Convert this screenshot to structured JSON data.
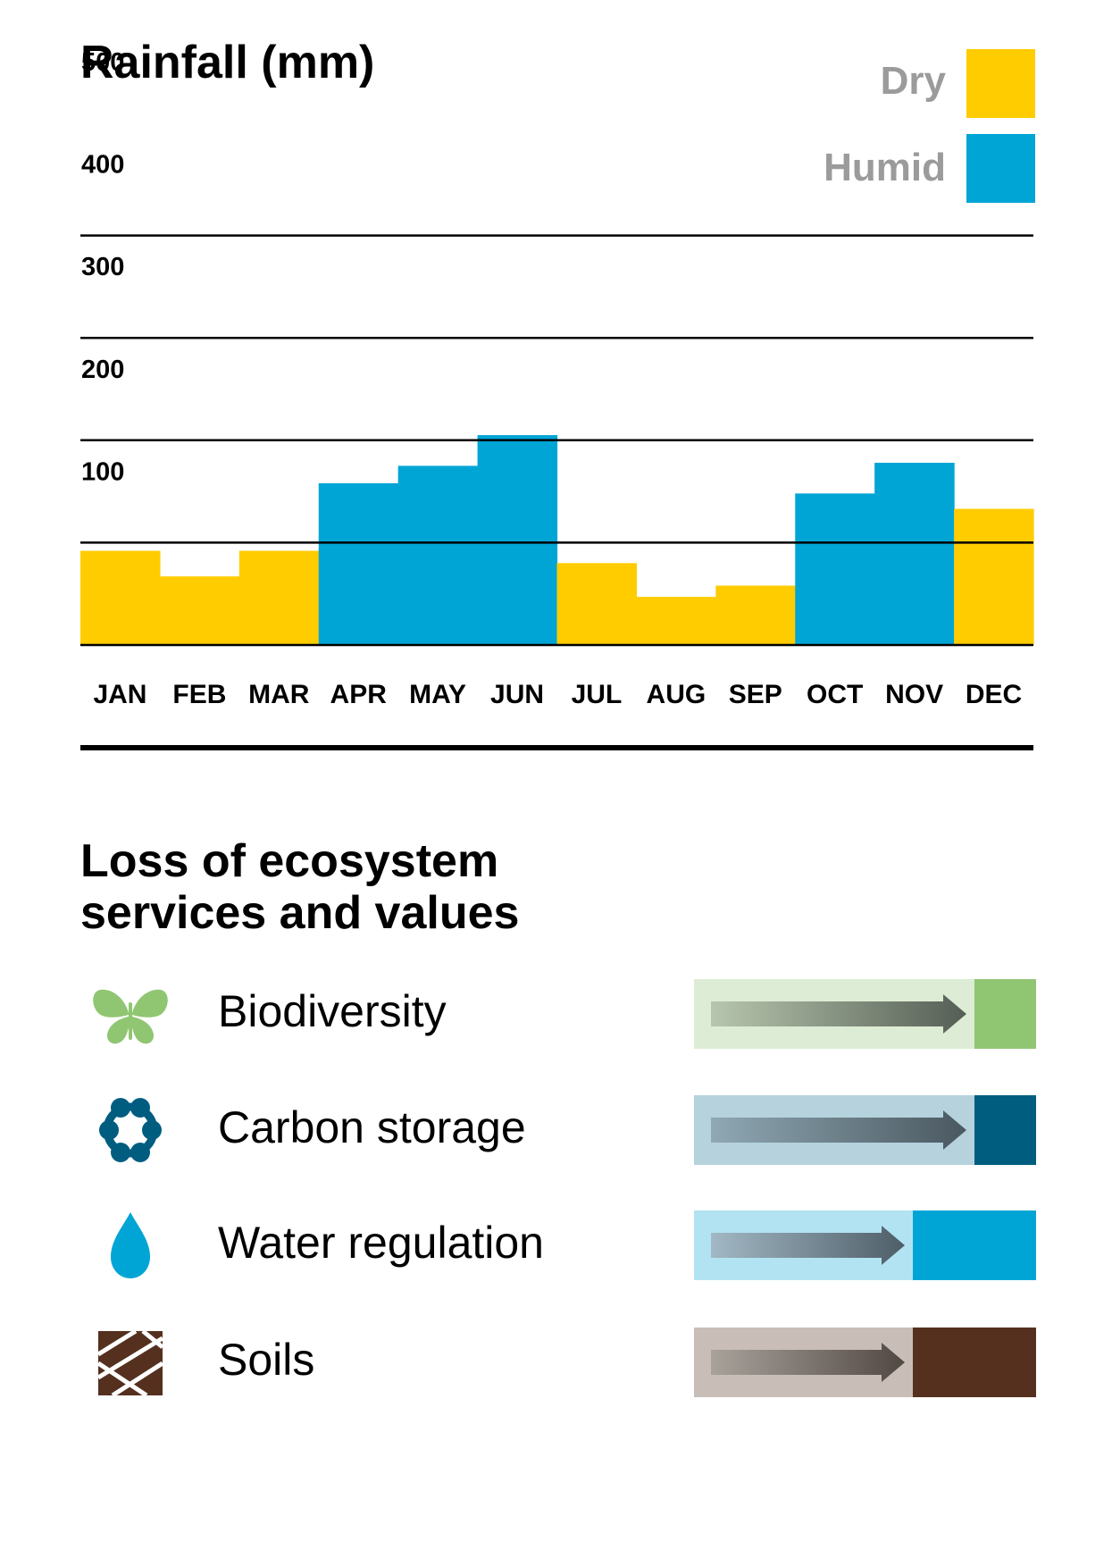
{
  "chart_data": {
    "type": "bar",
    "title": "Rainfall (mm)",
    "xlabel": "",
    "ylabel": "",
    "ylim": [
      0,
      500
    ],
    "yticks": [
      100,
      200,
      300,
      400,
      500
    ],
    "grid": true,
    "legend_position": "top-right",
    "categories": [
      "JAN",
      "FEB",
      "MAR",
      "APR",
      "MAY",
      "JUN",
      "JUL",
      "AUG",
      "SEP",
      "OCT",
      "NOV",
      "DEC"
    ],
    "values": [
      92,
      67,
      92,
      158,
      175,
      205,
      80,
      47,
      58,
      148,
      178,
      133
    ],
    "season": [
      "dry",
      "dry",
      "dry",
      "humid",
      "humid",
      "humid",
      "dry",
      "dry",
      "dry",
      "humid",
      "humid",
      "dry"
    ],
    "legend": [
      {
        "key": "dry",
        "label": "Dry",
        "color": "#FFCC00"
      },
      {
        "key": "humid",
        "label": "Humid",
        "color": "#00A5D6"
      }
    ]
  },
  "loss_section": {
    "title_lines": [
      "Loss of ecosystem",
      "services and values"
    ],
    "items": [
      {
        "label": "Biodiversity",
        "icon": "butterfly-icon",
        "loss": 0.2,
        "light": "#DDEDD5",
        "dark": "#90C672",
        "arrow_from": "#B7C6AD",
        "arrow_to": "#555E55"
      },
      {
        "label": "Carbon storage",
        "icon": "molecule-ring-icon",
        "loss": 0.2,
        "light": "#B5D2DD",
        "dark": "#005D80",
        "arrow_from": "#8FA8B4",
        "arrow_to": "#4A5860"
      },
      {
        "label": "Water regulation",
        "icon": "water-drop-icon",
        "loss": 0.4,
        "light": "#B2E3F3",
        "dark": "#00A5D6",
        "arrow_from": "#A2B8C4",
        "arrow_to": "#4E5E68"
      },
      {
        "label": "Soils",
        "icon": "soil-layers-icon",
        "loss": 0.4,
        "light": "#C9BDB7",
        "dark": "#55301F",
        "arrow_from": "#A9A29B",
        "arrow_to": "#514844"
      }
    ]
  }
}
